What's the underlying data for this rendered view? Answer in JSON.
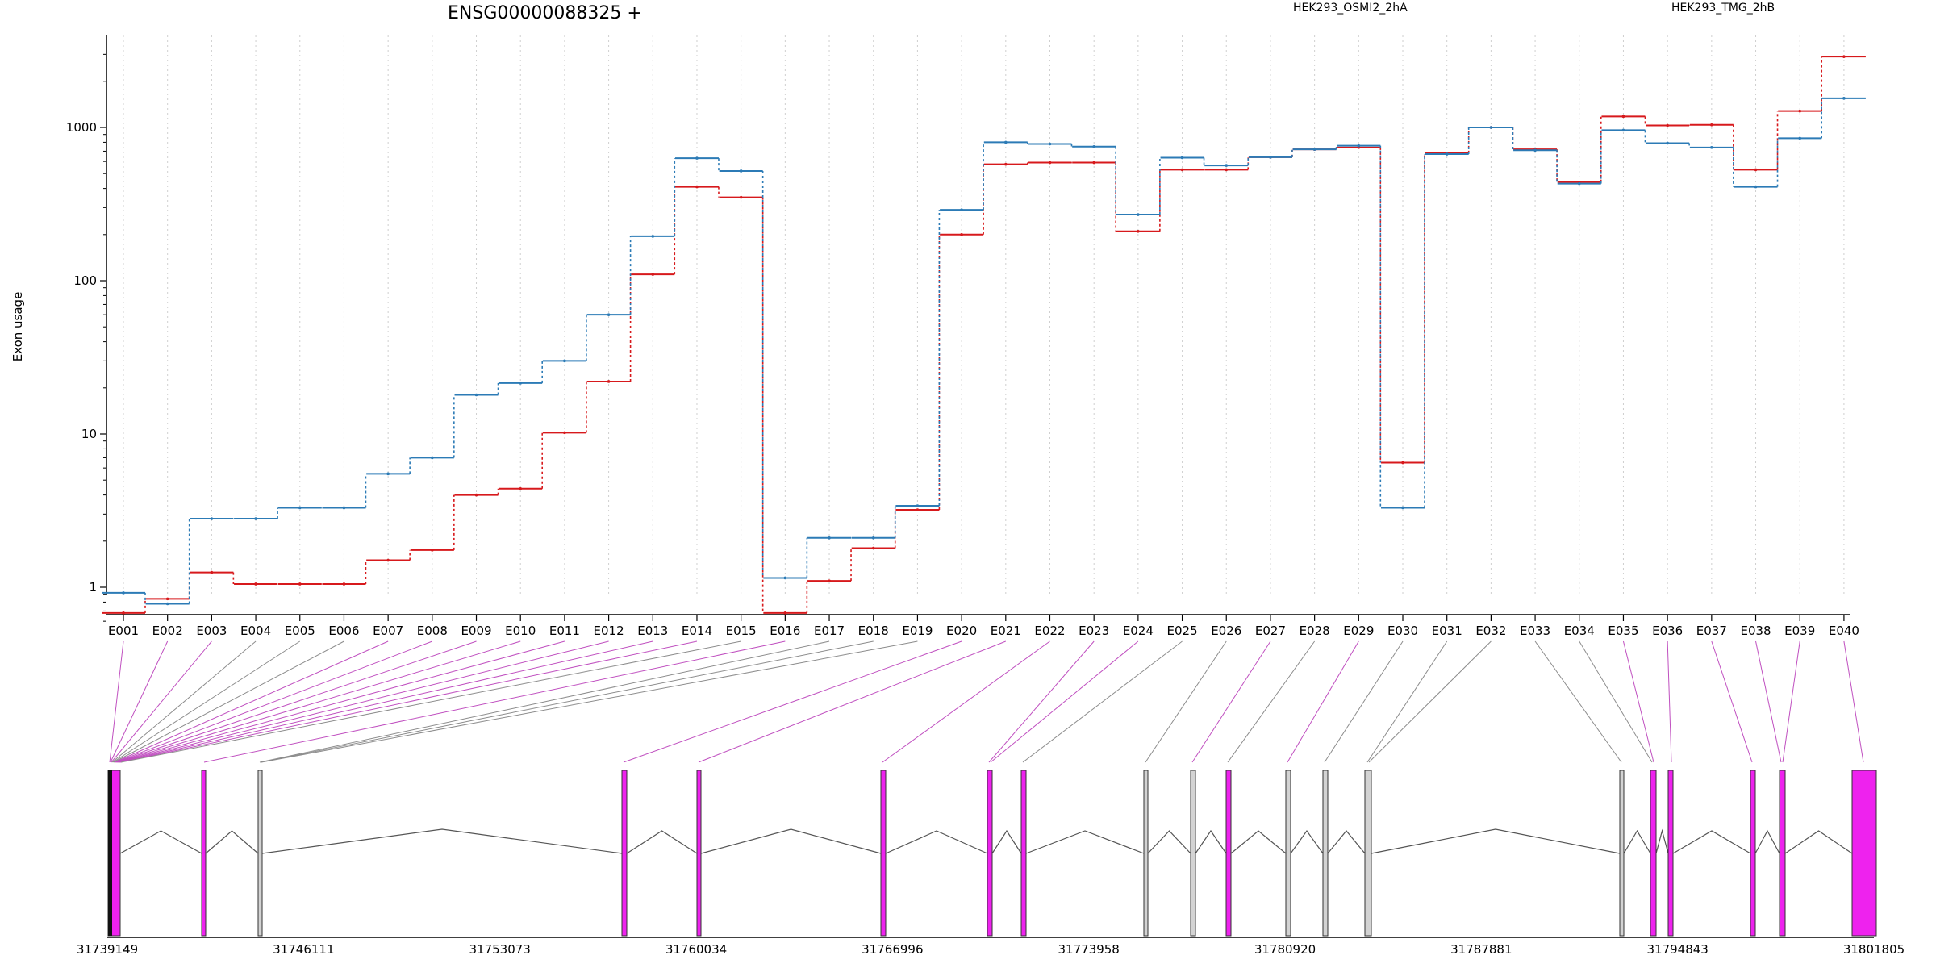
{
  "chart_data": {
    "type": "line",
    "title": "ENSG00000088325 +",
    "ylabel": "Exon usage",
    "yscale": "log",
    "ylim": [
      0.55,
      3500
    ],
    "y_ticks": [
      1,
      10,
      100,
      1000
    ],
    "y_tick_labels": [
      "1",
      "10",
      "100",
      "1000"
    ],
    "grid": "vertical-dotted",
    "legend_position": "top",
    "categories": [
      "E001",
      "E002",
      "E003",
      "E004",
      "E005",
      "E006",
      "E007",
      "E008",
      "E009",
      "E010",
      "E011",
      "E012",
      "E013",
      "E014",
      "E015",
      "E016",
      "E017",
      "E018",
      "E019",
      "E020",
      "E021",
      "E022",
      "E023",
      "E024",
      "E025",
      "E026",
      "E027",
      "E028",
      "E029",
      "E030",
      "E031",
      "E032",
      "E033",
      "E034",
      "E035",
      "E036",
      "E037",
      "E038",
      "E039",
      "E040"
    ],
    "series": [
      {
        "name": "HEK293_OSMI2_2hA",
        "color": "#d7191c",
        "values": [
          0.68,
          0.84,
          1.25,
          1.05,
          1.05,
          1.05,
          1.5,
          1.75,
          4.0,
          4.4,
          10.2,
          22,
          110,
          410,
          350,
          0.68,
          1.1,
          1.8,
          3.2,
          200,
          575,
          590,
          590,
          210,
          530,
          530,
          640,
          720,
          740,
          6.5,
          680,
          1000,
          720,
          440,
          1180,
          1030,
          1040,
          530,
          1280,
          2900
        ]
      },
      {
        "name": "HEK293_TMG_2hB",
        "color": "#2c7bb6",
        "values": [
          0.92,
          0.78,
          2.8,
          2.8,
          3.3,
          3.3,
          5.5,
          7.0,
          18,
          21.5,
          30,
          60,
          195,
          630,
          520,
          1.15,
          2.1,
          2.1,
          3.4,
          290,
          800,
          780,
          750,
          270,
          635,
          565,
          640,
          720,
          760,
          3.3,
          670,
          1000,
          710,
          430,
          960,
          790,
          740,
          410,
          850,
          1550
        ]
      }
    ],
    "gene_model": {
      "start_label": "31739149",
      "end_label": "31801805",
      "axis_ticks": [
        "31739149",
        "31746111",
        "31753073",
        "31760034",
        "31766996",
        "31773958",
        "31780920",
        "31787881",
        "31794843",
        "31801805"
      ],
      "exon_colors": {
        "significant": "#ee22ee",
        "other": "#d3d3d3"
      }
    }
  }
}
